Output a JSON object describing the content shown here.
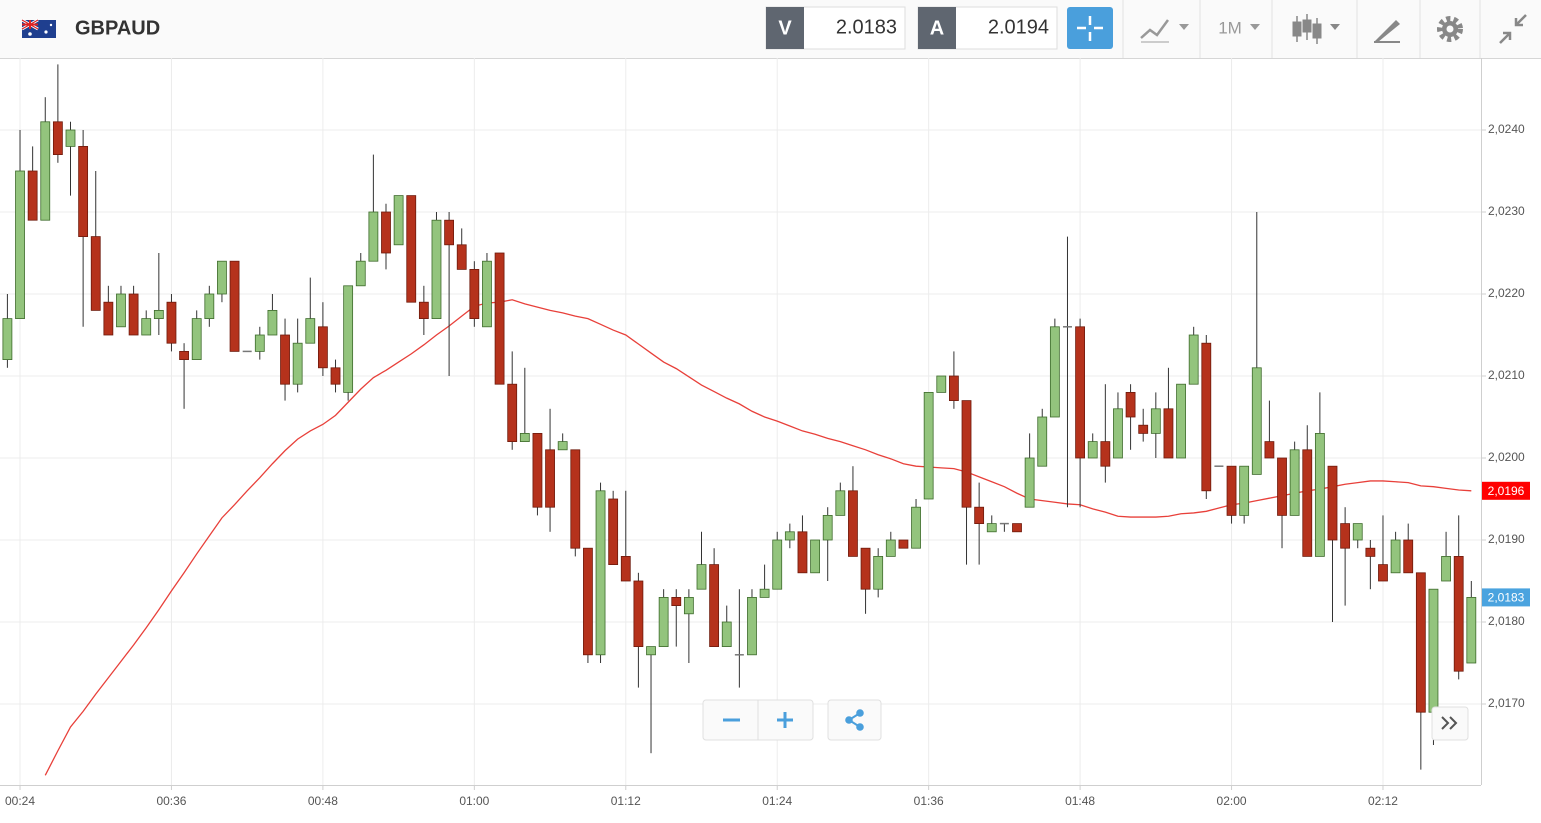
{
  "header": {
    "symbol": "GBPAUD",
    "sell": {
      "label": "V",
      "price": "2.0183"
    },
    "buy": {
      "label": "A",
      "price": "2.0194"
    },
    "timeframe": "1M"
  },
  "chart_data": {
    "type": "candlestick",
    "categories": [
      null,
      "00:24",
      null,
      null,
      null,
      null,
      null,
      null,
      null,
      null,
      null,
      null,
      null,
      "00:36",
      null,
      null,
      null,
      null,
      null,
      null,
      null,
      null,
      null,
      null,
      null,
      "00:48",
      null,
      null,
      null,
      null,
      null,
      null,
      null,
      null,
      null,
      null,
      null,
      "01:00",
      null,
      null,
      null,
      null,
      null,
      null,
      null,
      null,
      null,
      null,
      null,
      "01:12",
      null,
      null,
      null,
      null,
      null,
      null,
      null,
      null,
      null,
      null,
      null,
      "01:24",
      null,
      null,
      null,
      null,
      null,
      null,
      null,
      null,
      null,
      null,
      null,
      "01:36",
      null,
      null,
      null,
      null,
      null,
      null,
      null,
      null,
      null,
      null,
      null,
      "01:48",
      null,
      null,
      null,
      null,
      null,
      null,
      null,
      null,
      null,
      null,
      null,
      "02:00",
      null,
      null,
      null,
      null,
      null,
      null,
      null,
      null,
      null,
      null,
      null,
      "02:12",
      null,
      null,
      null,
      null,
      null,
      null,
      null
    ],
    "open": [
      2.0212,
      2.0217,
      2.0235,
      2.0229,
      2.0241,
      2.0238,
      2.0238,
      2.0227,
      2.0219,
      2.0216,
      2.022,
      2.0215,
      2.0217,
      2.0219,
      2.0213,
      2.0212,
      2.0217,
      2.022,
      2.0224,
      2.0213,
      2.0213,
      2.0215,
      2.0215,
      2.0209,
      2.0214,
      2.0216,
      2.0211,
      2.0208,
      2.0221,
      2.0224,
      2.023,
      2.0226,
      2.0232,
      2.0219,
      2.0217,
      2.0229,
      2.0226,
      2.0223,
      2.0216,
      2.0225,
      2.0209,
      2.0202,
      2.0203,
      2.0201,
      2.0201,
      2.0201,
      2.0189,
      2.0176,
      2.0195,
      2.0188,
      2.0185,
      2.0176,
      2.0177,
      2.0183,
      2.0181,
      2.0184,
      2.0187,
      2.0177,
      2.0176,
      2.0176,
      2.0183,
      2.0184,
      2.019,
      2.0191,
      2.0186,
      2.019,
      2.0193,
      2.0196,
      2.0189,
      2.0184,
      2.0188,
      2.019,
      2.0189,
      2.0195,
      2.0208,
      2.021,
      2.0207,
      2.0194,
      2.0191,
      2.0192,
      2.0192,
      2.0194,
      2.0199,
      2.0205,
      2.0216,
      2.0216,
      2.02,
      2.0202,
      2.02,
      2.0208,
      2.0204,
      2.0203,
      2.0206,
      2.02,
      2.0209,
      2.0214,
      2.0199,
      2.0199,
      2.0193,
      2.0198,
      2.0202,
      2.02,
      2.0193,
      2.0201,
      2.0188,
      2.0199,
      2.0192,
      2.019,
      2.0189,
      2.0187,
      2.0186,
      2.019,
      2.0186,
      2.0169,
      2.0185,
      2.0188,
      2.0175
    ],
    "high": [
      2.022,
      2.024,
      2.0238,
      2.0244,
      2.0248,
      2.0241,
      2.024,
      2.0235,
      2.0221,
      2.0221,
      2.0221,
      2.0218,
      2.0225,
      2.022,
      2.0214,
      2.0218,
      2.0221,
      2.0224,
      2.0224,
      2.0213,
      2.0216,
      2.022,
      2.0217,
      2.0217,
      2.0222,
      2.0219,
      2.0212,
      2.0221,
      2.0225,
      2.0237,
      2.0231,
      2.0232,
      2.0232,
      2.0221,
      2.023,
      2.023,
      2.0228,
      2.0224,
      2.0225,
      2.0225,
      2.0213,
      2.0211,
      2.0203,
      2.0206,
      2.0203,
      2.0201,
      2.0189,
      2.0197,
      2.0196,
      2.0196,
      2.0186,
      2.0177,
      2.0184,
      2.0184,
      2.0184,
      2.0191,
      2.0189,
      2.0182,
      2.0184,
      2.0184,
      2.0187,
      2.0191,
      2.0192,
      2.0193,
      2.019,
      2.0194,
      2.0197,
      2.0199,
      2.0189,
      2.0189,
      2.0191,
      2.019,
      2.0195,
      2.0208,
      2.021,
      2.0213,
      2.0207,
      2.0197,
      2.0193,
      2.0192,
      2.0192,
      2.0203,
      2.0206,
      2.0217,
      2.0227,
      2.0217,
      2.0203,
      2.0209,
      2.0208,
      2.0209,
      2.0206,
      2.0208,
      2.0211,
      2.0209,
      2.0216,
      2.0215,
      2.0199,
      2.0199,
      2.0199,
      2.023,
      2.0207,
      2.02,
      2.0202,
      2.0204,
      2.0208,
      2.0199,
      2.0194,
      2.0192,
      2.019,
      2.0193,
      2.0191,
      2.0192,
      2.0186,
      2.0184,
      2.0191,
      2.0193,
      2.0185
    ],
    "low": [
      2.0211,
      2.0217,
      2.0229,
      2.0229,
      2.0236,
      2.0232,
      2.0216,
      2.0218,
      2.0215,
      2.0216,
      2.0215,
      2.0215,
      2.0215,
      2.0213,
      2.0206,
      2.0212,
      2.0216,
      2.0219,
      2.0213,
      2.0213,
      2.0212,
      2.0215,
      2.0207,
      2.0208,
      2.0214,
      2.021,
      2.0208,
      2.0207,
      2.0221,
      2.0224,
      2.0223,
      2.0226,
      2.0219,
      2.0215,
      2.0217,
      2.021,
      2.0223,
      2.0216,
      2.0216,
      2.0209,
      2.0201,
      2.0202,
      2.0193,
      2.0191,
      2.0201,
      2.0188,
      2.0175,
      2.0175,
      2.0187,
      2.0185,
      2.0172,
      2.0164,
      2.0177,
      2.0177,
      2.0175,
      2.0184,
      2.0177,
      2.0177,
      2.0172,
      2.0176,
      2.0183,
      2.0184,
      2.0189,
      2.0186,
      2.0186,
      2.0185,
      2.0193,
      2.0188,
      2.0181,
      2.0183,
      2.0188,
      2.0189,
      2.0189,
      2.0195,
      2.0208,
      2.0206,
      2.0187,
      2.0187,
      2.0191,
      2.0191,
      2.0191,
      2.0194,
      2.0199,
      2.0205,
      2.0194,
      2.0194,
      2.02,
      2.0197,
      2.02,
      2.0201,
      2.0202,
      2.02,
      2.02,
      2.02,
      2.0209,
      2.0195,
      2.0199,
      2.0192,
      2.0192,
      2.0198,
      2.02,
      2.0189,
      2.0193,
      2.0188,
      2.0188,
      2.018,
      2.0182,
      2.0189,
      2.0184,
      2.0185,
      2.0186,
      2.0186,
      2.0162,
      2.0165,
      2.0185,
      2.0173,
      2.0175
    ],
    "close": [
      2.0217,
      2.0235,
      2.0229,
      2.0241,
      2.0237,
      2.024,
      2.0227,
      2.0218,
      2.0215,
      2.022,
      2.0215,
      2.0217,
      2.0218,
      2.0214,
      2.0212,
      2.0217,
      2.022,
      2.0224,
      2.0213,
      2.0213,
      2.0215,
      2.0218,
      2.0209,
      2.0214,
      2.0217,
      2.0211,
      2.0209,
      2.0221,
      2.0224,
      2.023,
      2.0225,
      2.0232,
      2.0219,
      2.0217,
      2.0229,
      2.0226,
      2.0223,
      2.0217,
      2.0224,
      2.0209,
      2.0202,
      2.0203,
      2.0194,
      2.0194,
      2.0202,
      2.0189,
      2.0176,
      2.0196,
      2.0187,
      2.0185,
      2.0177,
      2.0177,
      2.0183,
      2.0182,
      2.0183,
      2.0187,
      2.0177,
      2.018,
      2.0176,
      2.0183,
      2.0184,
      2.019,
      2.0191,
      2.0186,
      2.019,
      2.0193,
      2.0196,
      2.0188,
      2.0184,
      2.0188,
      2.019,
      2.0189,
      2.0194,
      2.0208,
      2.021,
      2.0207,
      2.0194,
      2.0192,
      2.0192,
      2.0192,
      2.0191,
      2.02,
      2.0205,
      2.0216,
      2.0216,
      2.02,
      2.0202,
      2.0199,
      2.0206,
      2.0205,
      2.0203,
      2.0206,
      2.02,
      2.0209,
      2.0215,
      2.0196,
      2.0199,
      2.0193,
      2.0199,
      2.0211,
      2.02,
      2.0193,
      2.0201,
      2.0188,
      2.0203,
      2.019,
      2.0189,
      2.0192,
      2.0188,
      2.0185,
      2.019,
      2.0186,
      2.0169,
      2.0184,
      2.0188,
      2.0174,
      2.0183
    ],
    "up_color": "#93c47d",
    "up_border": "#3e6b2c",
    "down_color": "#b5321c",
    "down_border": "#6e1a0c",
    "doji_color": "#777777",
    "wick_color": "#333333",
    "ma": {
      "color": "#e8403a",
      "values": [
        null,
        null,
        null,
        2.01613,
        2.01643,
        2.01672,
        2.01691,
        2.01712,
        2.01732,
        2.01752,
        2.01772,
        2.01793,
        2.01815,
        2.01838,
        2.0186,
        2.01883,
        2.01905,
        2.01927,
        2.01943,
        2.0196,
        2.01976,
        2.01993,
        2.02009,
        2.02023,
        2.02033,
        2.02041,
        2.02052,
        2.02068,
        2.02084,
        2.02098,
        2.02107,
        2.02117,
        2.02127,
        2.02138,
        2.0215,
        2.02161,
        2.02173,
        2.02185,
        2.02189,
        2.0219,
        2.02193,
        2.02188,
        2.02184,
        2.0218,
        2.02177,
        2.02173,
        2.0217,
        2.02163,
        2.02156,
        2.0215,
        2.02139,
        2.02128,
        2.02117,
        2.02109,
        2.02099,
        2.02089,
        2.02081,
        2.02073,
        2.02066,
        2.02057,
        2.0205,
        2.02045,
        2.02039,
        2.02033,
        2.02029,
        2.02024,
        2.0202,
        2.02015,
        2.0201,
        2.02004,
        2.01999,
        2.01993,
        2.0199,
        2.01989,
        2.01988,
        2.01987,
        2.01983,
        2.01977,
        2.01971,
        2.01965,
        2.01957,
        2.0195,
        2.01948,
        2.01946,
        2.01944,
        2.01943,
        2.01938,
        2.01934,
        2.01929,
        2.01928,
        2.01928,
        2.01928,
        2.01929,
        2.01932,
        2.01933,
        2.01935,
        2.01939,
        2.01943,
        2.01945,
        2.01948,
        2.01951,
        2.01954,
        2.01957,
        2.0196,
        2.01962,
        2.01965,
        2.01968,
        2.0197,
        2.01972,
        2.01972,
        2.01971,
        2.0197,
        2.01966,
        2.01965,
        2.01963,
        2.01961,
        2.0196
      ]
    },
    "ylim": [
      2.016,
      2.0249
    ],
    "yticks": [
      {
        "value": 2.017,
        "label": "2,0170"
      },
      {
        "value": 2.018,
        "label": "2,0180"
      },
      {
        "value": 2.019,
        "label": "2,0190"
      },
      {
        "value": 2.02,
        "label": "2,0200"
      },
      {
        "value": 2.021,
        "label": "2,0210"
      },
      {
        "value": 2.022,
        "label": "2,0220"
      },
      {
        "value": 2.023,
        "label": "2,0230"
      },
      {
        "value": 2.024,
        "label": "2,0240"
      }
    ],
    "grid": true,
    "price_labels": [
      {
        "value": 2.0196,
        "label": "2,0196",
        "color": "#ff0000"
      },
      {
        "value": 2.0183,
        "label": "2,0183",
        "color": "#4aa3df"
      }
    ]
  }
}
